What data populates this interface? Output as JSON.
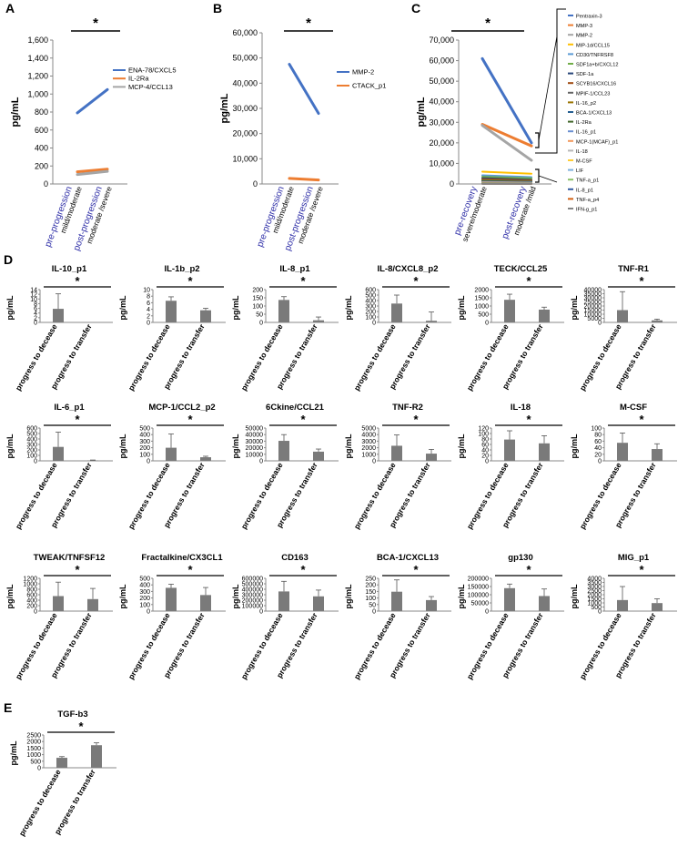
{
  "panel_labels": [
    "A",
    "B",
    "C",
    "D",
    "E"
  ],
  "ylabel": "pg/mL",
  "significance": "*",
  "chart_data": [
    {
      "id": "A",
      "type": "line",
      "x_categories": [
        {
          "main": "pre-progression",
          "sub": "mild/moderate"
        },
        {
          "main": "post-progression",
          "sub": "moderate /severe"
        }
      ],
      "ylabel": "pg/mL",
      "ylim": [
        0,
        1600
      ],
      "yticks": [
        "0",
        "200",
        "400",
        "600",
        "800",
        "1,000",
        "1,200",
        "1,400",
        "1,600"
      ],
      "series": [
        {
          "name": "ENA-78/CXCL5",
          "color": "#4472c4",
          "values": [
            790,
            1050
          ]
        },
        {
          "name": "IL-2Ra",
          "color": "#ed7d31",
          "values": [
            135,
            165
          ]
        },
        {
          "name": "MCP-4/CCL13",
          "color": "#a5a5a5",
          "values": [
            105,
            140
          ]
        }
      ]
    },
    {
      "id": "B",
      "type": "line",
      "x_categories": [
        {
          "main": "pre-progression",
          "sub": "mild/moderate"
        },
        {
          "main": "post-progression",
          "sub": "moderate /severe"
        }
      ],
      "ylabel": "pg/mL",
      "ylim": [
        0,
        60000
      ],
      "yticks": [
        "0",
        "10,000",
        "20,000",
        "30,000",
        "40,000",
        "50,000",
        "60,000"
      ],
      "series": [
        {
          "name": "MMP-2",
          "color": "#4472c4",
          "values": [
            47500,
            28000
          ]
        },
        {
          "name": "CTACK_p1",
          "color": "#ed7d31",
          "values": [
            2200,
            1600
          ]
        }
      ]
    },
    {
      "id": "C",
      "type": "line",
      "x_categories": [
        {
          "main": "pre-recovery",
          "sub": "severe/moderate"
        },
        {
          "main": "post-recovery",
          "sub": "moderate /mild"
        }
      ],
      "ylabel": "pg/mL",
      "ylim": [
        0,
        70000
      ],
      "yticks": [
        "0",
        "10,000",
        "20,000",
        "30,000",
        "40,000",
        "50,000",
        "60,000",
        "70,000"
      ],
      "series": [
        {
          "name": "Pentraxin-3",
          "color": "#4472c4",
          "values": [
            61000,
            20000
          ]
        },
        {
          "name": "MMP-3",
          "color": "#ed7d31",
          "values": [
            29000,
            18500
          ]
        },
        {
          "name": "MMP-2",
          "color": "#a5a5a5",
          "values": [
            28500,
            11500
          ]
        },
        {
          "name": "MIP-1d/CCL15",
          "color": "#ffc000",
          "values": [
            6000,
            5000
          ]
        },
        {
          "name": "CD30/TNFRSF8",
          "color": "#5b9bd5",
          "values": [
            4200,
            3300
          ]
        },
        {
          "name": "SDF1a+b/CXCL12",
          "color": "#70ad47",
          "values": [
            3500,
            2700
          ]
        },
        {
          "name": "SDF-1a",
          "color": "#264478",
          "values": [
            2800,
            2000
          ]
        },
        {
          "name": "SCYB16/CXCL16",
          "color": "#9e480e",
          "values": [
            2400,
            1700
          ]
        },
        {
          "name": "MPIF-1/CCL23",
          "color": "#636363",
          "values": [
            2000,
            1400
          ]
        },
        {
          "name": "IL-16_p2",
          "color": "#997300",
          "values": [
            1700,
            1200
          ]
        },
        {
          "name": "BCA-1/CXCL13",
          "color": "#255e91",
          "values": [
            1400,
            1000
          ]
        },
        {
          "name": "IL-2Ra",
          "color": "#43682b",
          "values": [
            1200,
            800
          ]
        },
        {
          "name": "IL-16_p1",
          "color": "#698ed0",
          "values": [
            1000,
            700
          ]
        },
        {
          "name": "MCP-1(MCAF)_p1",
          "color": "#f1975a",
          "values": [
            800,
            500
          ]
        },
        {
          "name": "IL-18",
          "color": "#b7b7b7",
          "values": [
            600,
            400
          ]
        },
        {
          "name": "M-CSF",
          "color": "#ffcd33",
          "values": [
            450,
            300
          ]
        },
        {
          "name": "LIF",
          "color": "#7cafdd",
          "values": [
            350,
            250
          ]
        },
        {
          "name": "TNF-a_p1",
          "color": "#8cc168",
          "values": [
            250,
            150
          ]
        },
        {
          "name": "IL-8_p1",
          "color": "#335aa1",
          "values": [
            180,
            100
          ]
        },
        {
          "name": "TNF-a_p4",
          "color": "#d26012",
          "values": [
            120,
            70
          ]
        },
        {
          "name": "IFN-g_p1",
          "color": "#848484",
          "values": [
            80,
            40
          ]
        }
      ]
    },
    {
      "id": "D",
      "type": "bar",
      "categories": [
        "progress to decease",
        "progress to transfer"
      ],
      "charts": [
        {
          "title": "IL-10_p1",
          "yticks": [
            "0",
            "2",
            "4",
            "6",
            "8",
            "10",
            "12",
            "14"
          ],
          "ylim": [
            0,
            14
          ],
          "values": [
            5.8,
            0
          ],
          "errors": [
            6.4,
            0
          ]
        },
        {
          "title": "IL-1b_p2",
          "yticks": [
            "0",
            "2",
            "4",
            "6",
            "8",
            "10"
          ],
          "ylim": [
            0,
            10
          ],
          "values": [
            6.6,
            3.7
          ],
          "errors": [
            1.2,
            0.6
          ]
        },
        {
          "title": "IL-8_p1",
          "yticks": [
            "0",
            "50",
            "100",
            "150",
            "200"
          ],
          "ylim": [
            0,
            200
          ],
          "values": [
            137,
            13
          ],
          "errors": [
            20,
            20
          ]
        },
        {
          "title": "IL-8/CXCL8_p2",
          "yticks": [
            "0",
            "100",
            "200",
            "300",
            "400",
            "500",
            "600"
          ],
          "ylim": [
            0,
            600
          ],
          "values": [
            345,
            30
          ],
          "errors": [
            155,
            160
          ]
        },
        {
          "title": "TECK/CCL25",
          "yticks": [
            "0",
            "500",
            "1000",
            "1500",
            "2000"
          ],
          "ylim": [
            0,
            2000
          ],
          "values": [
            1380,
            780
          ],
          "errors": [
            340,
            150
          ]
        },
        {
          "title": "TNF-R1",
          "yticks": [
            "0",
            "5000",
            "10000",
            "15000",
            "20000",
            "25000",
            "30000",
            "35000",
            "40000"
          ],
          "ylim": [
            0,
            40000
          ],
          "values": [
            15000,
            2500
          ],
          "errors": [
            22500,
            1500
          ]
        },
        {
          "title": "IL-6_p1",
          "yticks": [
            "0",
            "100",
            "200",
            "300",
            "400",
            "500",
            "600"
          ],
          "ylim": [
            0,
            600
          ],
          "values": [
            255,
            8
          ],
          "errors": [
            270,
            7
          ]
        },
        {
          "title": "MCP-1/CCL2_p2",
          "yticks": [
            "0",
            "100",
            "200",
            "300",
            "400",
            "500"
          ],
          "ylim": [
            0,
            500
          ],
          "values": [
            200,
            55
          ],
          "errors": [
            210,
            15
          ]
        },
        {
          "title": "6Ckine/CCL21",
          "yticks": [
            "0",
            "10000",
            "20000",
            "30000",
            "40000",
            "50000"
          ],
          "ylim": [
            0,
            50000
          ],
          "values": [
            30500,
            14000
          ],
          "errors": [
            9500,
            4000
          ]
        },
        {
          "title": "TNF-R2",
          "yticks": [
            "0",
            "1000",
            "2000",
            "3000",
            "4000",
            "5000"
          ],
          "ylim": [
            0,
            5000
          ],
          "values": [
            2300,
            1100
          ],
          "errors": [
            1650,
            650
          ]
        },
        {
          "title": "IL-18",
          "yticks": [
            "0",
            "20",
            "40",
            "60",
            "80",
            "100",
            "120"
          ],
          "ylim": [
            0,
            120
          ],
          "values": [
            78,
            64
          ],
          "errors": [
            32,
            28
          ]
        },
        {
          "title": "M-CSF",
          "yticks": [
            "0",
            "20",
            "40",
            "60",
            "80",
            "100"
          ],
          "ylim": [
            0,
            100
          ],
          "values": [
            55,
            36
          ],
          "errors": [
            30,
            16
          ]
        },
        {
          "title": "TWEAK/TNFSF12",
          "yticks": [
            "0",
            "200",
            "400",
            "600",
            "800",
            "1000",
            "1200"
          ],
          "ylim": [
            0,
            1200
          ],
          "values": [
            550,
            440
          ],
          "errors": [
            510,
            390
          ]
        },
        {
          "title": "Fractalkine/CX3CL1",
          "yticks": [
            "0",
            "100",
            "200",
            "300",
            "400",
            "500"
          ],
          "ylim": [
            0,
            500
          ],
          "values": [
            355,
            245
          ],
          "errors": [
            55,
            115
          ]
        },
        {
          "title": "CD163",
          "yticks": [
            "0",
            "100000",
            "200000",
            "300000",
            "400000",
            "500000",
            "600000"
          ],
          "ylim": [
            0,
            600000
          ],
          "values": [
            360000,
            270000
          ],
          "errors": [
            185000,
            115000
          ]
        },
        {
          "title": "BCA-1/CXCL13",
          "yticks": [
            "0",
            "50",
            "100",
            "150",
            "200",
            "250"
          ],
          "ylim": [
            0,
            250
          ],
          "values": [
            148,
            84
          ],
          "errors": [
            90,
            27
          ]
        },
        {
          "title": "gp130",
          "yticks": [
            "0",
            "50000",
            "100000",
            "150000",
            "200000"
          ],
          "ylim": [
            0,
            200000
          ],
          "values": [
            140000,
            92000
          ],
          "errors": [
            25000,
            43000
          ]
        },
        {
          "title": "MIG_p1",
          "yticks": [
            "0",
            "500",
            "1000",
            "1500",
            "2000",
            "2500",
            "3000",
            "3500",
            "4000"
          ],
          "ylim": [
            0,
            4000
          ],
          "values": [
            1350,
            980
          ],
          "errors": [
            1650,
            520
          ]
        }
      ]
    },
    {
      "id": "E",
      "type": "bar",
      "categories": [
        "progress to decease",
        "progress to transfer"
      ],
      "charts": [
        {
          "title": "TGF-b3",
          "yticks": [
            "0",
            "500",
            "1000",
            "1500",
            "2000",
            "2500"
          ],
          "ylim": [
            0,
            2500
          ],
          "values": [
            760,
            1720
          ],
          "errors": [
            90,
            180
          ]
        }
      ]
    }
  ]
}
